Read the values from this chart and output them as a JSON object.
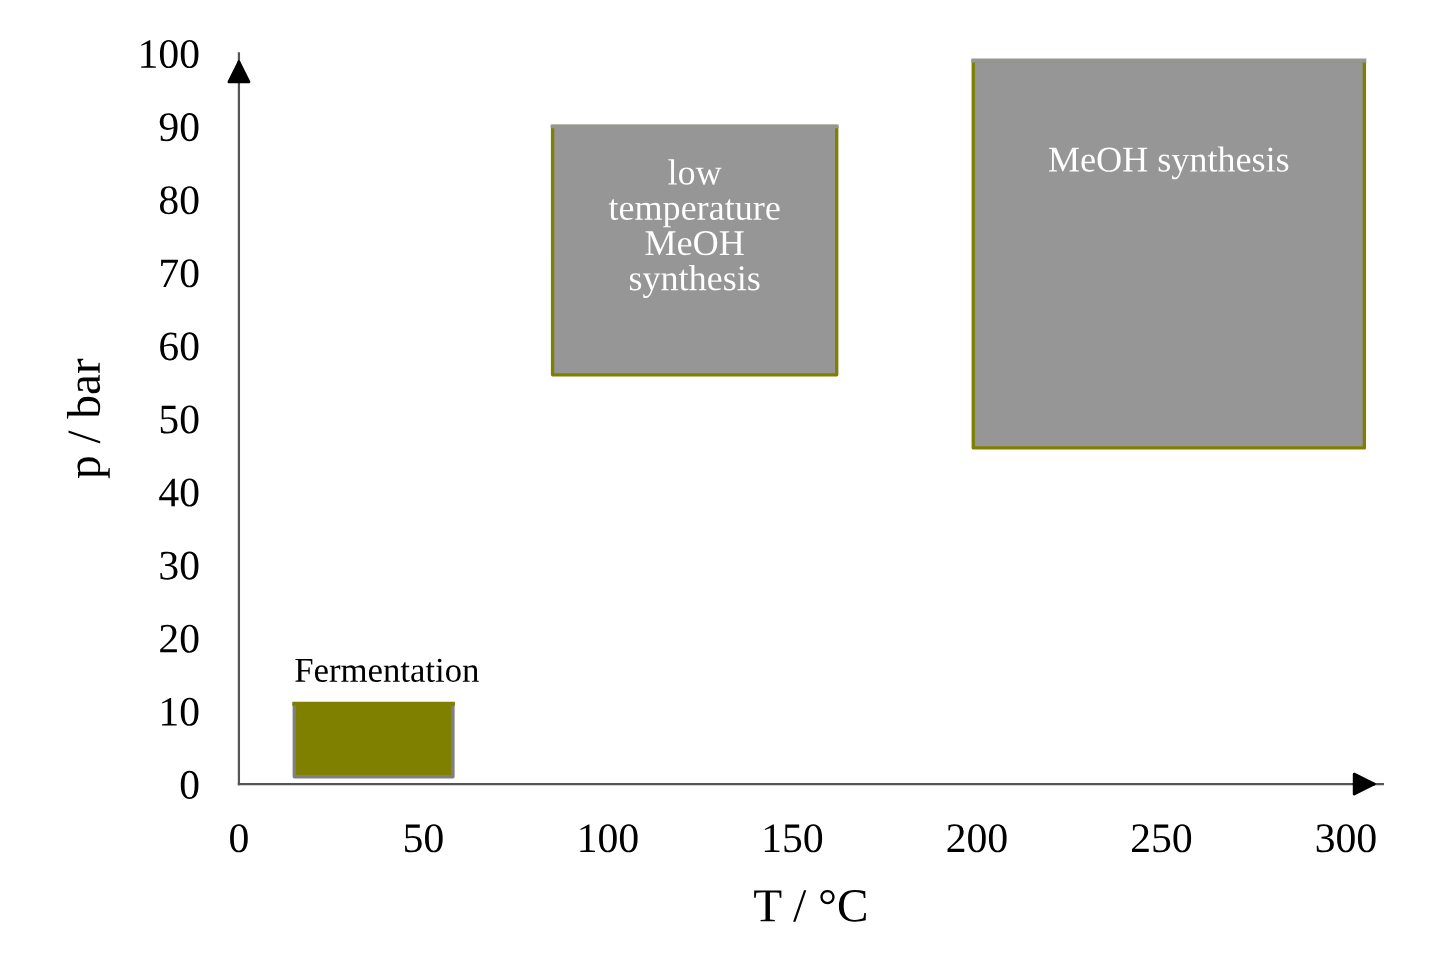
{
  "chart_data": {
    "type": "line",
    "xlabel": "T / °C",
    "ylabel": "p / bar",
    "series": [
      {
        "name": "Fermentation",
        "color": "#808000",
        "x": [
          15,
          58
        ],
        "values": [
          11,
          11
        ],
        "lower": [
          1,
          1
        ],
        "upper": [
          11,
          11
        ]
      },
      {
        "name": "low\ntemperature\nMeOH\nsynthesis",
        "color": "#969696",
        "x": [
          85,
          162
        ],
        "values": [
          90,
          90
        ],
        "lower": [
          56,
          56
        ],
        "upper": [
          90,
          90
        ]
      },
      {
        "name": "MeOH synthesis",
        "color": "#969696",
        "x": [
          199,
          305
        ],
        "values": [
          99,
          99
        ],
        "lower": [
          46,
          46
        ],
        "upper": [
          99,
          99
        ]
      }
    ],
    "xlim": [
      0,
      310
    ],
    "ylim": [
      0,
      100
    ],
    "xticks": [
      0,
      50,
      100,
      150,
      200,
      250,
      300
    ],
    "yticks": [
      0,
      10,
      20,
      30,
      40,
      50,
      60,
      70,
      80,
      90,
      100
    ],
    "grid": false,
    "legend": false
  }
}
